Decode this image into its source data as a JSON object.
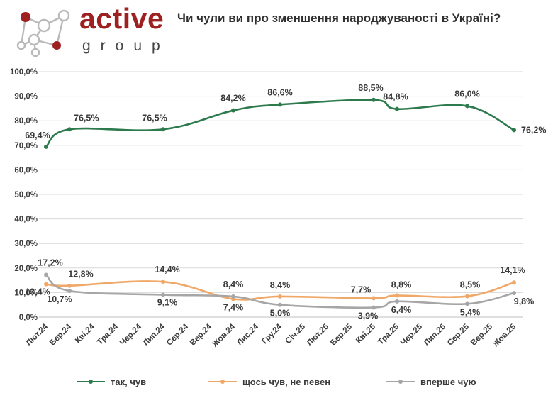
{
  "header": {
    "logo_word": "active",
    "logo_sub": "group",
    "title": "Чи чули ви про зменшення народжуваності в Україні?"
  },
  "colors": {
    "series": [
      "#2d7a4d",
      "#f0a868",
      "#a6a6a6"
    ],
    "grid": "#d9d9d9",
    "logo_red": "#9e2121",
    "logo_gray": "#b9b9b9"
  },
  "chart_data": {
    "type": "line",
    "title": "Чи чули ви про зменшення народжуваності в Україні?",
    "categories": [
      "Лют.24",
      "Бер.24",
      "Кві.24",
      "Тра.24",
      "Чер.24",
      "Лип.24",
      "Сер.24",
      "Вер.24",
      "Жов.24",
      "Лис.24",
      "Гру.24",
      "Січ.25",
      "Лют.25",
      "Бер.25",
      "Кві.25",
      "Тра.25",
      "Чер.25",
      "Лип.25",
      "Сер.25",
      "Вер.25",
      "Жов.25"
    ],
    "y_ticks": [
      "0,0%",
      "10,0%",
      "20,0%",
      "30,0%",
      "40,0%",
      "50,0%",
      "60,0%",
      "70,0%",
      "80,0%",
      "90,0%",
      "100,0%"
    ],
    "ylim": [
      0,
      100
    ],
    "grid": true,
    "legend_position": "bottom",
    "series": [
      {
        "name": "так, чув",
        "points": [
          [
            0,
            69.4
          ],
          [
            1,
            76.5
          ],
          [
            5,
            76.5
          ],
          [
            8,
            84.2
          ],
          [
            10,
            86.6
          ],
          [
            14,
            88.5
          ],
          [
            15,
            84.8
          ],
          [
            18,
            86.0
          ],
          [
            20,
            76.2
          ]
        ],
        "labels": [
          "69,4%",
          "76,5%",
          "76,5%",
          "84,2%",
          "86,6%",
          "88,5%",
          "84,8%",
          "86,0%",
          "76,2%"
        ]
      },
      {
        "name": "щось чув, не певен",
        "points": [
          [
            0,
            13.4
          ],
          [
            1,
            12.8
          ],
          [
            5,
            14.4
          ],
          [
            8,
            7.4
          ],
          [
            10,
            8.4
          ],
          [
            14,
            7.7
          ],
          [
            15,
            8.8
          ],
          [
            18,
            8.5
          ],
          [
            20,
            14.1
          ]
        ],
        "labels": [
          "13,4%",
          "12,8%",
          "14,4%",
          "7,4%",
          "8,4%",
          "7,7%",
          "8,8%",
          "8,5%",
          "14,1%"
        ]
      },
      {
        "name": "вперше чую",
        "points": [
          [
            0,
            17.2
          ],
          [
            1,
            10.7
          ],
          [
            5,
            9.1
          ],
          [
            8,
            8.4
          ],
          [
            10,
            5.0
          ],
          [
            14,
            3.9
          ],
          [
            15,
            6.4
          ],
          [
            18,
            5.4
          ],
          [
            20,
            9.8
          ]
        ],
        "labels": [
          "17,2%",
          "10,7%",
          "9,1%",
          "8,4%",
          "5,0%",
          "3,9%",
          "6,4%",
          "5,4%",
          "9,8%"
        ]
      }
    ]
  }
}
